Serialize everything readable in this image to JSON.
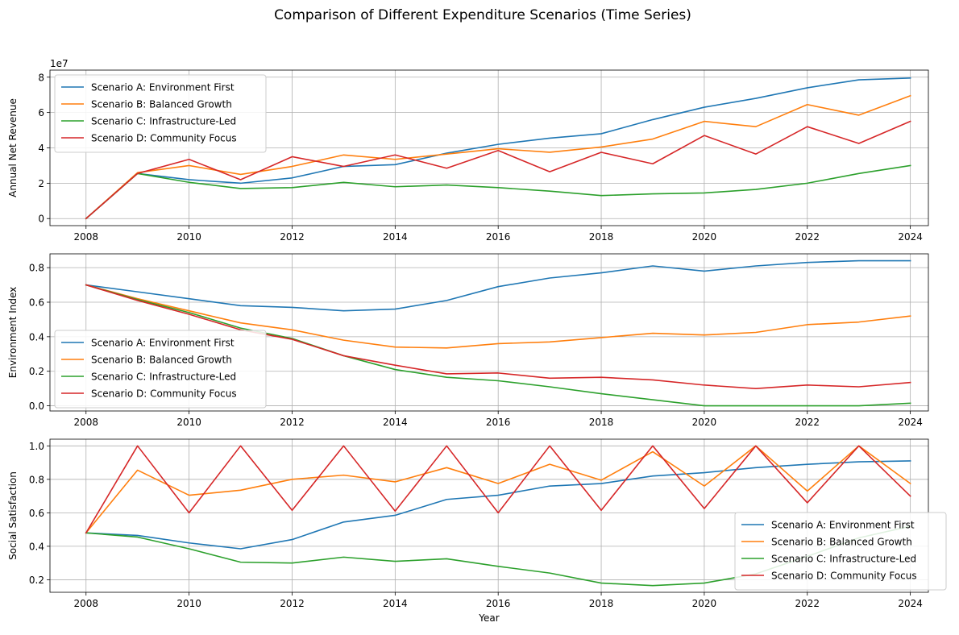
{
  "figure": {
    "title": "Comparison of Different Expenditure Scenarios (Time Series)"
  },
  "colors": {
    "A": "#1f77b4",
    "B": "#ff7f0e",
    "C": "#2ca02c",
    "D": "#d62728"
  },
  "chart_data": [
    {
      "type": "line",
      "title": "",
      "xlabel": "",
      "ylabel": "Annual Net Revenue",
      "offset_label": "1e7",
      "xlim": [
        2007.3,
        2024.35
      ],
      "ylim": [
        -0.4,
        8.4
      ],
      "xticks": [
        2008,
        2010,
        2012,
        2014,
        2016,
        2018,
        2020,
        2022,
        2024
      ],
      "yticks": [
        0,
        2,
        4,
        6,
        8
      ],
      "ytick_labels": [
        "0",
        "2",
        "4",
        "6",
        "8"
      ],
      "legend_position": "upper left",
      "x": [
        2008,
        2009,
        2010,
        2011,
        2012,
        2013,
        2014,
        2015,
        2016,
        2017,
        2018,
        2019,
        2020,
        2021,
        2022,
        2023,
        2024
      ],
      "series": [
        {
          "key": "A",
          "name": "Scenario A: Environment First",
          "values": [
            0,
            2.55,
            2.2,
            2.0,
            2.3,
            2.95,
            3.05,
            3.7,
            4.2,
            4.55,
            4.8,
            5.6,
            6.3,
            6.8,
            7.4,
            7.85,
            7.95
          ]
        },
        {
          "key": "B",
          "name": "Scenario B: Balanced Growth",
          "values": [
            0,
            2.6,
            3.0,
            2.5,
            2.95,
            3.6,
            3.35,
            3.65,
            3.95,
            3.75,
            4.05,
            4.5,
            5.5,
            5.2,
            6.45,
            5.85,
            6.95
          ]
        },
        {
          "key": "C",
          "name": "Scenario C: Infrastructure-Led",
          "values": [
            0,
            2.55,
            2.05,
            1.7,
            1.75,
            2.05,
            1.8,
            1.9,
            1.75,
            1.55,
            1.3,
            1.4,
            1.45,
            1.65,
            2.0,
            2.55,
            3.0
          ]
        },
        {
          "key": "D",
          "name": "Scenario D: Community Focus",
          "values": [
            0,
            2.55,
            3.35,
            2.2,
            3.5,
            2.95,
            3.6,
            2.85,
            3.85,
            2.65,
            3.75,
            3.1,
            4.7,
            3.65,
            5.2,
            4.25,
            5.5
          ]
        }
      ]
    },
    {
      "type": "line",
      "title": "",
      "xlabel": "",
      "ylabel": "Environment Index",
      "xlim": [
        2007.3,
        2024.35
      ],
      "ylim": [
        -0.03,
        0.88
      ],
      "xticks": [
        2008,
        2010,
        2012,
        2014,
        2016,
        2018,
        2020,
        2022,
        2024
      ],
      "yticks": [
        0.0,
        0.2,
        0.4,
        0.6,
        0.8
      ],
      "ytick_labels": [
        "0.0",
        "0.2",
        "0.4",
        "0.6",
        "0.8"
      ],
      "legend_position": "lower left",
      "x": [
        2008,
        2009,
        2010,
        2011,
        2012,
        2013,
        2014,
        2015,
        2016,
        2017,
        2018,
        2019,
        2020,
        2021,
        2022,
        2023,
        2024
      ],
      "series": [
        {
          "key": "A",
          "name": "Scenario A: Environment First",
          "values": [
            0.7,
            0.66,
            0.62,
            0.58,
            0.57,
            0.55,
            0.56,
            0.61,
            0.69,
            0.74,
            0.77,
            0.81,
            0.78,
            0.81,
            0.83,
            0.84,
            0.84
          ]
        },
        {
          "key": "B",
          "name": "Scenario B: Balanced Growth",
          "values": [
            0.7,
            0.62,
            0.55,
            0.48,
            0.44,
            0.38,
            0.34,
            0.335,
            0.36,
            0.37,
            0.395,
            0.42,
            0.41,
            0.425,
            0.47,
            0.485,
            0.52
          ]
        },
        {
          "key": "C",
          "name": "Scenario C: Infrastructure-Led",
          "values": [
            0.7,
            0.615,
            0.54,
            0.45,
            0.39,
            0.29,
            0.21,
            0.165,
            0.145,
            0.11,
            0.07,
            0.035,
            0.0,
            0.0,
            0.0,
            0.0,
            0.015
          ]
        },
        {
          "key": "D",
          "name": "Scenario D: Community Focus",
          "values": [
            0.7,
            0.61,
            0.53,
            0.44,
            0.385,
            0.29,
            0.235,
            0.185,
            0.19,
            0.16,
            0.165,
            0.15,
            0.12,
            0.1,
            0.12,
            0.11,
            0.135
          ]
        }
      ]
    },
    {
      "type": "line",
      "title": "",
      "xlabel": "Year",
      "ylabel": "Social Satisfaction",
      "xlim": [
        2007.3,
        2024.35
      ],
      "ylim": [
        0.125,
        1.04
      ],
      "xticks": [
        2008,
        2010,
        2012,
        2014,
        2016,
        2018,
        2020,
        2022,
        2024
      ],
      "yticks": [
        0.2,
        0.4,
        0.6,
        0.8,
        1.0
      ],
      "ytick_labels": [
        "0.2",
        "0.4",
        "0.6",
        "0.8",
        "1.0"
      ],
      "legend_position": "lower right",
      "x": [
        2008,
        2009,
        2010,
        2011,
        2012,
        2013,
        2014,
        2015,
        2016,
        2017,
        2018,
        2019,
        2020,
        2021,
        2022,
        2023,
        2024
      ],
      "series": [
        {
          "key": "A",
          "name": "Scenario A: Environment First",
          "values": [
            0.48,
            0.465,
            0.42,
            0.385,
            0.44,
            0.545,
            0.585,
            0.68,
            0.705,
            0.76,
            0.775,
            0.82,
            0.84,
            0.87,
            0.89,
            0.905,
            0.91
          ]
        },
        {
          "key": "B",
          "name": "Scenario B: Balanced Growth",
          "values": [
            0.48,
            0.855,
            0.705,
            0.735,
            0.8,
            0.825,
            0.785,
            0.87,
            0.775,
            0.89,
            0.795,
            0.965,
            0.76,
            1.0,
            0.73,
            1.0,
            0.775
          ]
        },
        {
          "key": "C",
          "name": "Scenario C: Infrastructure-Led",
          "values": [
            0.48,
            0.455,
            0.385,
            0.305,
            0.3,
            0.335,
            0.31,
            0.325,
            0.28,
            0.24,
            0.18,
            0.165,
            0.18,
            0.235,
            0.34,
            0.45,
            0.52
          ]
        },
        {
          "key": "D",
          "name": "Scenario D: Community Focus",
          "values": [
            0.48,
            1.0,
            0.6,
            1.0,
            0.615,
            1.0,
            0.61,
            1.0,
            0.6,
            1.0,
            0.615,
            1.0,
            0.625,
            1.0,
            0.66,
            1.0,
            0.7
          ]
        }
      ]
    }
  ]
}
